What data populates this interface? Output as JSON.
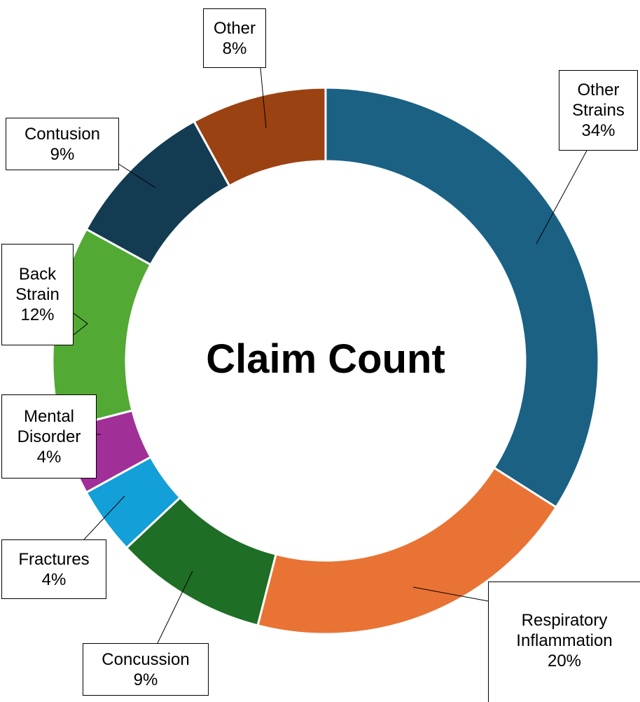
{
  "chart_data": {
    "type": "donut",
    "title": "Claim Count",
    "categories": [
      "Other Strains",
      "Respiratory Inflammation",
      "Concussion",
      "Fractures",
      "Mental Disorder",
      "Back Strain",
      "Contusion",
      "Other"
    ],
    "values": [
      34,
      20,
      9,
      4,
      4,
      12,
      9,
      8
    ],
    "value_labels": [
      "34%",
      "20%",
      "9%",
      "4%",
      "4%",
      "12%",
      "9%",
      "8%"
    ],
    "colors": [
      "#1a6184",
      "#e97334",
      "#1e6e25",
      "#139fd8",
      "#a12f98",
      "#52a934",
      "#133c53",
      "#9b4212"
    ]
  }
}
